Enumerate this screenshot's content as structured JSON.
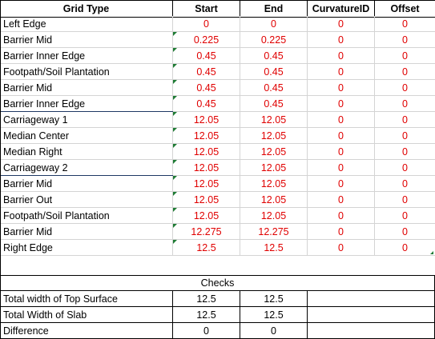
{
  "headers": [
    "Grid Type",
    "Start",
    "End",
    "CurvatureID",
    "Offset"
  ],
  "rows": [
    [
      "Left Edge",
      "0",
      "0",
      "0",
      "0"
    ],
    [
      "Barrier Mid",
      "0.225",
      "0.225",
      "0",
      "0"
    ],
    [
      "Barrier Inner Edge",
      "0.45",
      "0.45",
      "0",
      "0"
    ],
    [
      "Footpath/Soil Plantation",
      "0.45",
      "0.45",
      "0",
      "0"
    ],
    [
      "Barrier Mid",
      "0.45",
      "0.45",
      "0",
      "0"
    ],
    [
      "Barrier Inner Edge",
      "0.45",
      "0.45",
      "0",
      "0"
    ],
    [
      "Carriageway 1",
      "12.05",
      "12.05",
      "0",
      "0"
    ],
    [
      "Median Center",
      "12.05",
      "12.05",
      "0",
      "0"
    ],
    [
      "Median Right",
      "12.05",
      "12.05",
      "0",
      "0"
    ],
    [
      "Carriageway 2",
      "12.05",
      "12.05",
      "0",
      "0"
    ],
    [
      "Barrier Mid",
      "12.05",
      "12.05",
      "0",
      "0"
    ],
    [
      "Barrier Out",
      "12.05",
      "12.05",
      "0",
      "0"
    ],
    [
      "Footpath/Soil Plantation",
      "12.05",
      "12.05",
      "0",
      "0"
    ],
    [
      "Barrier Mid",
      "12.275",
      "12.275",
      "0",
      "0"
    ],
    [
      "Right Edge",
      "12.5",
      "12.5",
      "0",
      "0"
    ]
  ],
  "checks": {
    "title": "Checks",
    "rows": [
      [
        "Total width of Top Surface",
        "12.5",
        "12.5"
      ],
      [
        "Total Width of Slab",
        "12.5",
        "12.5"
      ],
      [
        "Difference",
        "0",
        "0"
      ]
    ]
  },
  "colors": {
    "value_red": "#e00000",
    "indicator_green": "#1e7b34",
    "border_blue": "#1f3864"
  }
}
